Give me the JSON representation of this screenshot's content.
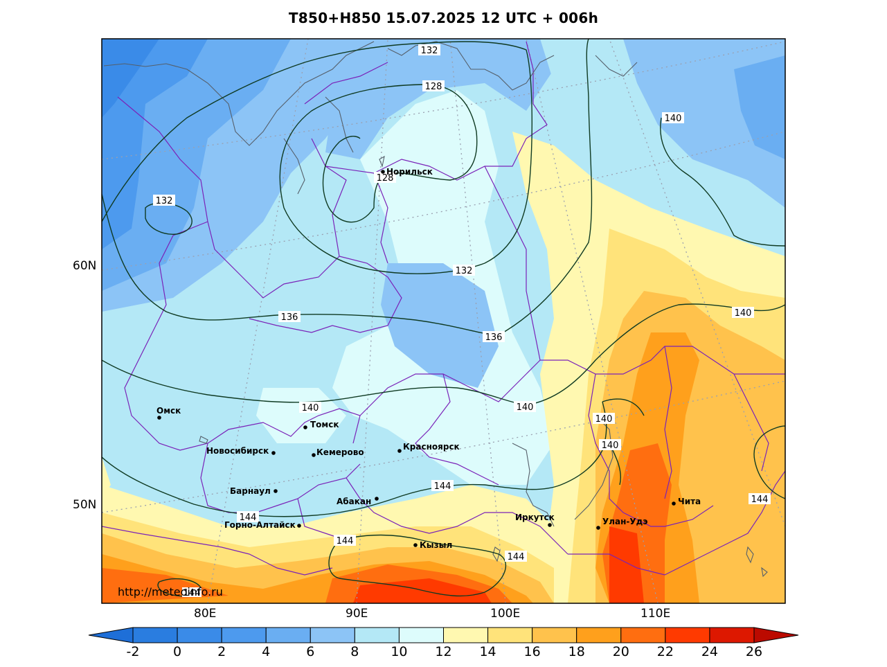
{
  "title": "T850+H850 15.07.2025 12 UTC + 006h",
  "credit": "http://meteoinfo.ru",
  "lon_labels": [
    "80E",
    "90E",
    "100E",
    "110E"
  ],
  "lat_labels": [
    "60N",
    "50N"
  ],
  "cities": [
    {
      "name": "Норильск"
    },
    {
      "name": "Омск"
    },
    {
      "name": "Томск"
    },
    {
      "name": "Новосибирск"
    },
    {
      "name": "Кемерово"
    },
    {
      "name": "Красноярск"
    },
    {
      "name": "Барнаул"
    },
    {
      "name": "Абакан"
    },
    {
      "name": "Горно-Алтайск"
    },
    {
      "name": "Кызыл"
    },
    {
      "name": "Иркутск"
    },
    {
      "name": "Улан-Удэ"
    },
    {
      "name": "Чита"
    }
  ],
  "contour_labels": [
    "132",
    "128",
    "128",
    "132",
    "132",
    "136",
    "136",
    "140",
    "140",
    "140",
    "140",
    "140",
    "140",
    "144",
    "144",
    "144",
    "144",
    "144",
    "144"
  ],
  "colorbar": {
    "ticks": [
      "-2",
      "0",
      "2",
      "4",
      "6",
      "8",
      "10",
      "12",
      "14",
      "16",
      "18",
      "20",
      "22",
      "24",
      "26"
    ],
    "colors": [
      "#2a7de0",
      "#3a8be8",
      "#4d9aee",
      "#6aaef2",
      "#8cc4f6",
      "#b4e8f6",
      "#ddfcfc",
      "#fff8b0",
      "#ffe37a",
      "#ffc24c",
      "#ffa01c",
      "#ff6e10",
      "#ff3a00",
      "#dd1800"
    ],
    "under_color": "#1e6fd8",
    "over_color": "#bb0a00"
  }
}
